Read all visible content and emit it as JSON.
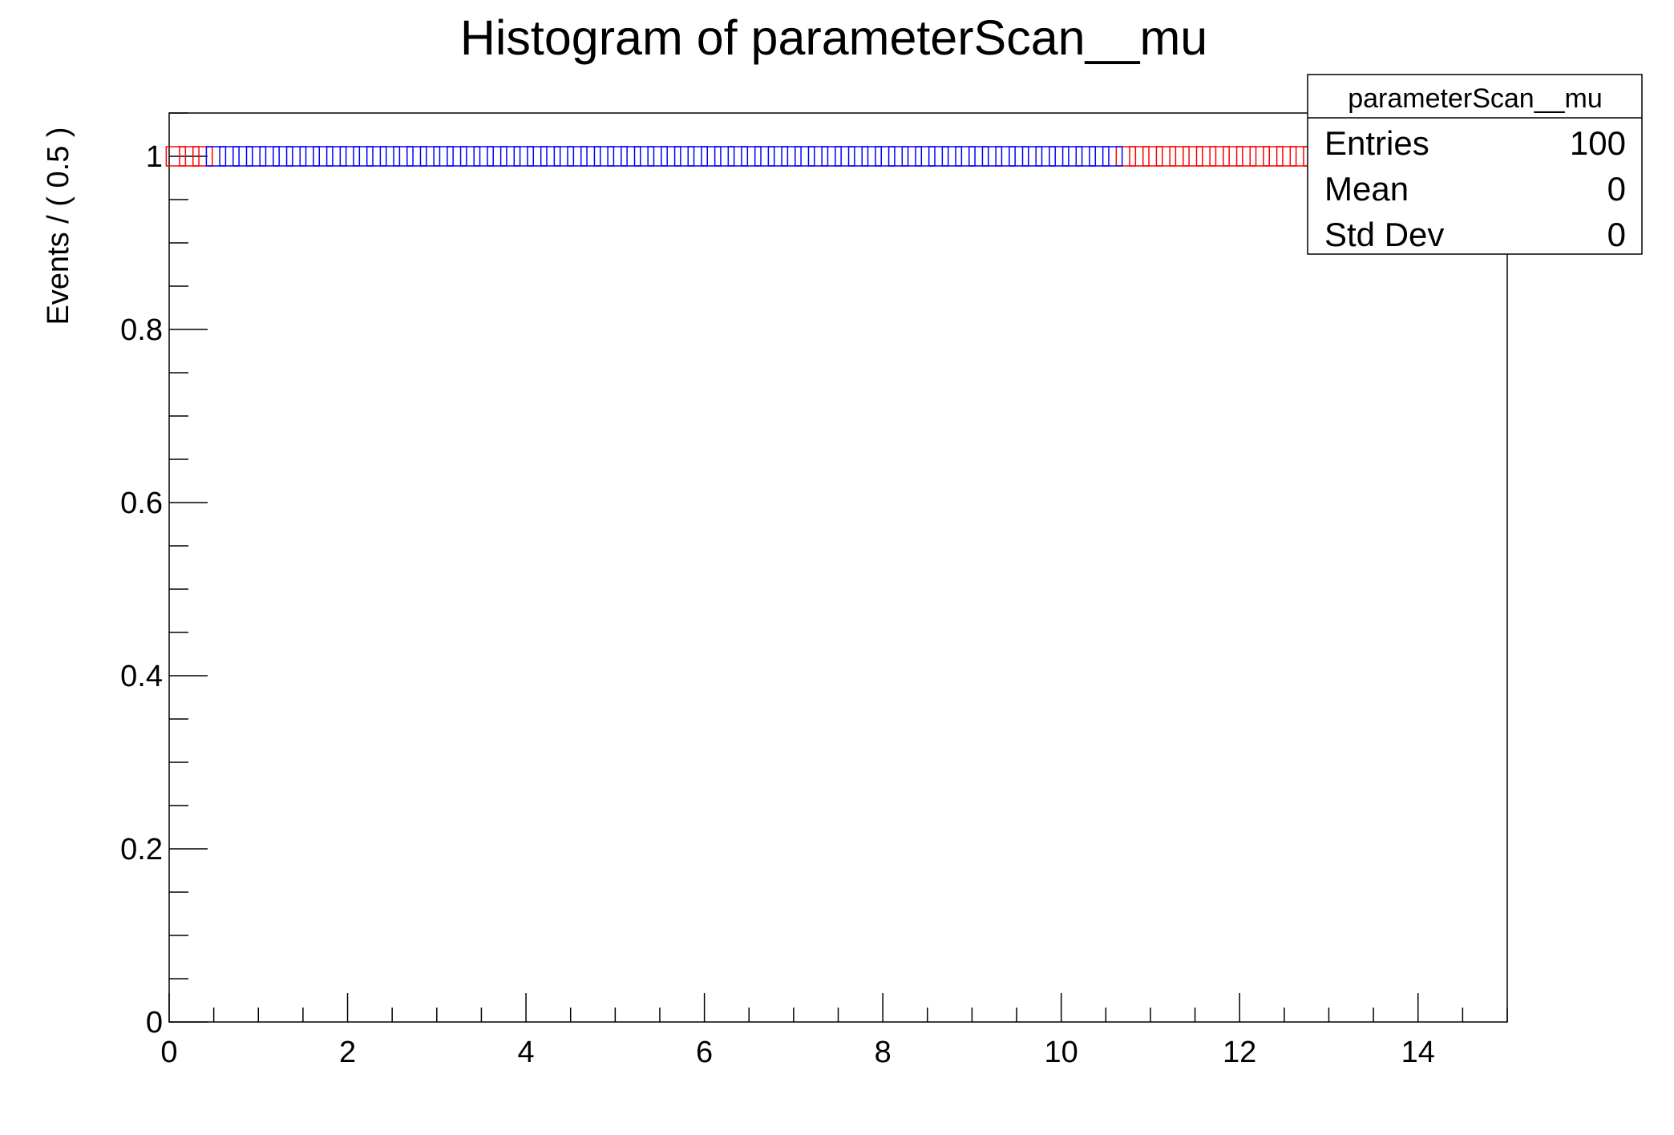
{
  "chart_data": {
    "type": "scatter",
    "title": "Histogram of parameterScan__mu",
    "xlabel": "",
    "ylabel": "Events / ( 0.5 )",
    "xlim": [
      0,
      15
    ],
    "ylim": [
      0,
      1.05
    ],
    "grid": false,
    "marker": "open-square",
    "x_ticks": [
      "0",
      "2",
      "4",
      "6",
      "8",
      "10",
      "12",
      "14"
    ],
    "x_tick_values": [
      0,
      2,
      4,
      6,
      8,
      10,
      12,
      14
    ],
    "y_ticks": [
      "0",
      "0.2",
      "0.4",
      "0.6",
      "0.8",
      "1"
    ],
    "y_tick_values": [
      0,
      0.2,
      0.4,
      0.6,
      0.8,
      1
    ],
    "series": [
      {
        "color": "#ff0000",
        "x": [
          0.075,
          0.225,
          0.375,
          10.725,
          10.875,
          11.025,
          11.175,
          11.325,
          11.475,
          11.625,
          11.775,
          11.925,
          12.075,
          12.225,
          12.375,
          12.525,
          12.675,
          12.825,
          12.975,
          13.125,
          13.275,
          13.425,
          13.575,
          13.725,
          13.875,
          14.025,
          14.175,
          14.325,
          14.475,
          14.625,
          14.775,
          14.925
        ],
        "y_value": 1
      },
      {
        "color": "#0000ff",
        "x": [
          0.525,
          0.675,
          0.825,
          0.975,
          1.125,
          1.275,
          1.425,
          1.575,
          1.725,
          1.875,
          2.025,
          2.175,
          2.325,
          2.475,
          2.625,
          2.775,
          2.925,
          3.075,
          3.225,
          3.375,
          3.525,
          3.675,
          3.825,
          3.975,
          4.125,
          4.275,
          4.425,
          4.575,
          4.725,
          4.875,
          5.025,
          5.175,
          5.325,
          5.475,
          5.625,
          5.775,
          5.925,
          6.075,
          6.225,
          6.375,
          6.525,
          6.675,
          6.825,
          6.975,
          7.125,
          7.275,
          7.425,
          7.575,
          7.725,
          7.875,
          8.025,
          8.175,
          8.325,
          8.475,
          8.625,
          8.775,
          8.925,
          9.075,
          9.225,
          9.375,
          9.525,
          9.675,
          9.825,
          9.975,
          10.125,
          10.275,
          10.425,
          10.575
        ],
        "y_value": 1
      }
    ],
    "stats_box": {
      "title": "parameterScan__mu",
      "rows": [
        {
          "label": "Entries",
          "value": "100"
        },
        {
          "label": "Mean",
          "value": "0"
        },
        {
          "label": "Std Dev",
          "value": "0"
        }
      ]
    }
  }
}
